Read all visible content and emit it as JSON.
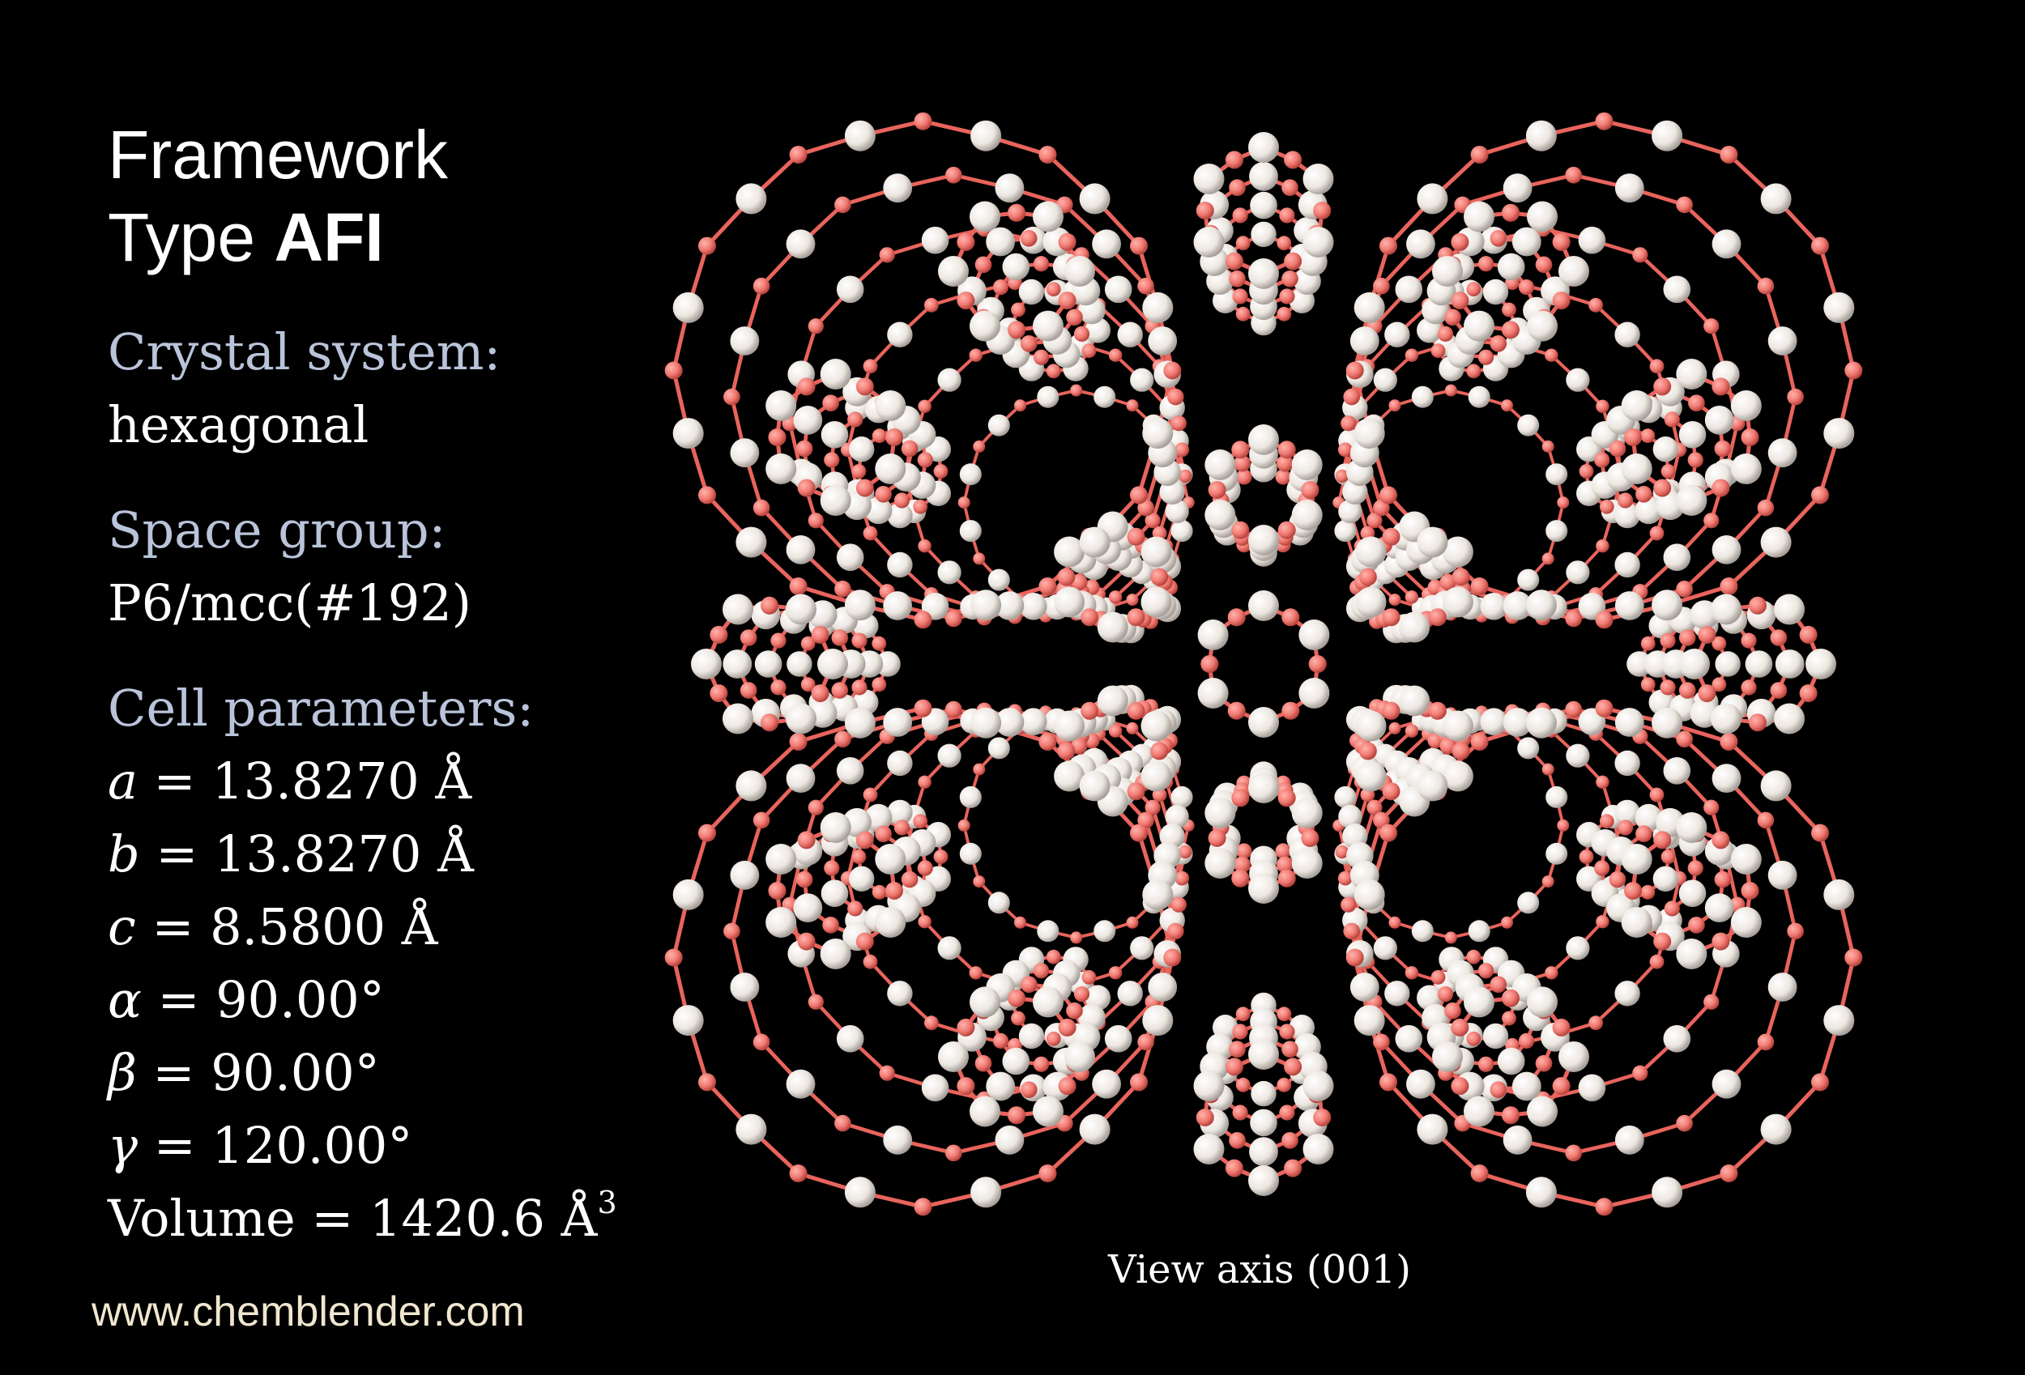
{
  "title": {
    "line1": "Framework",
    "line2_prefix": "Type ",
    "line2_bold": "AFI"
  },
  "crystal_system": {
    "label": "Crystal system:",
    "value": "hexagonal"
  },
  "space_group": {
    "label": "Space group:",
    "value": "P6/mcc(#192)"
  },
  "cell_parameters": {
    "label": "Cell parameters:",
    "items": [
      {
        "symbol": "a",
        "text": " = 13.8270 Å"
      },
      {
        "symbol": "b",
        "text": " = 13.8270 Å"
      },
      {
        "symbol": "c",
        "text": " = 8.5800 Å"
      },
      {
        "symbol": "α",
        "text": " = 90.00°"
      },
      {
        "symbol": "β",
        "text": " = 90.00°"
      },
      {
        "symbol": "γ",
        "text": " = 120.00°"
      }
    ],
    "volume": {
      "text": "Volume = 1420.6 Å",
      "superscript": "3"
    }
  },
  "view_axis": "View axis (001)",
  "website": "www.chemblender.com",
  "colors": {
    "background": "#000000",
    "oxygen_atom": "#f07a72",
    "tetrahedral_atom": "#f2ede8",
    "label_text": "#b9c4da",
    "value_text": "#ffffff",
    "website_text": "#f0e7cf"
  }
}
